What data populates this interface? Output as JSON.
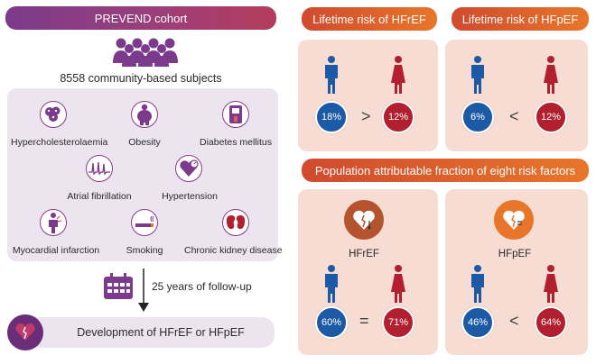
{
  "cohort": {
    "banner": "PREVEND cohort",
    "subjects": "8558 community-based subjects",
    "risk_factors": [
      {
        "label": "Hypercholesterolaemia",
        "icon": "cholesterol-icon"
      },
      {
        "label": "Obesity",
        "icon": "obesity-icon"
      },
      {
        "label": "Diabetes mellitus",
        "icon": "glucose-meter-icon"
      },
      {
        "label": "Atrial fibrillation",
        "icon": "ecg-icon"
      },
      {
        "label": "Hypertension",
        "icon": "blood-pressure-icon"
      },
      {
        "label": "Myocardial infarction",
        "icon": "chest-pain-icon"
      },
      {
        "label": "Smoking",
        "icon": "cigarette-icon"
      },
      {
        "label": "Chronic kidney disease",
        "icon": "kidney-icon"
      }
    ],
    "followup": "25 years of follow-up",
    "outcome": "Development of HFrEF or HFpEF"
  },
  "lifetime": {
    "hfref": {
      "title": "Lifetime risk of HFrEF",
      "male": "18%",
      "female": "12%",
      "op": ">"
    },
    "hfpef": {
      "title": "Lifetime risk of HFpEF",
      "male": "6%",
      "female": "12%",
      "op": "<"
    }
  },
  "paf": {
    "banner": "Population attributable fraction of eight risk factors",
    "hfref": {
      "label": "HFrEF",
      "male": "60%",
      "female": "71%",
      "op": "="
    },
    "hfpef": {
      "label": "HFpEF",
      "male": "46%",
      "female": "64%",
      "op": "<"
    }
  },
  "colors": {
    "purple": "#7c3a8c",
    "orange": "#e8762a",
    "blue": "#1d5aa5",
    "red": "#b21f2e"
  }
}
